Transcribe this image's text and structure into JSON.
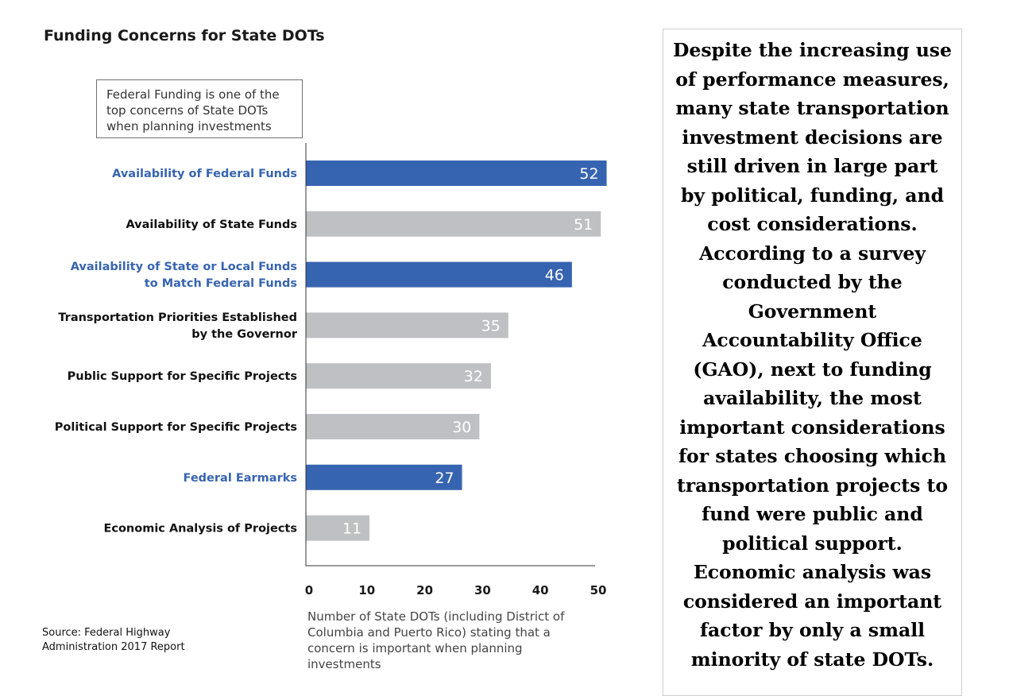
{
  "chart_data": {
    "type": "bar",
    "orientation": "horizontal",
    "title": "Funding Concerns for State DOTs",
    "annotation": "Federal Funding is one of the top concerns of State DOTs when planning investments",
    "categories": [
      "Availability of Federal Funds",
      "Availability of State Funds",
      "Availability of State or Local Funds to Match Federal Funds",
      "Transportation Priorities Established by the Governor",
      "Public Support for Specific Projects",
      "Political Support for Specific Projects",
      "Federal Earmarks",
      "Economic Analysis of Projects"
    ],
    "category_lines": [
      [
        "Availability of Federal Funds"
      ],
      [
        "Availability of State Funds"
      ],
      [
        "Availability of State or Local Funds",
        "to Match Federal Funds"
      ],
      [
        "Transportation Priorities Established",
        "by the Governor"
      ],
      [
        "Public Support for Specific Projects"
      ],
      [
        "Political Support for Specific Projects"
      ],
      [
        "Federal Earmarks"
      ],
      [
        "Economic Analysis of Projects"
      ]
    ],
    "values": [
      52,
      51,
      46,
      35,
      32,
      30,
      27,
      11
    ],
    "highlight": [
      true,
      false,
      true,
      false,
      false,
      false,
      true,
      false
    ],
    "colors": {
      "highlight": "#3764b0",
      "normal": "#bfc0c3",
      "highlight_label": "#3764b0",
      "normal_label": "#111111"
    },
    "xlim": [
      0,
      52
    ],
    "xticks": [
      0,
      10,
      20,
      30,
      40,
      50
    ],
    "xlabel": "Number of State DOTs (including District of Columbia and Puerto Rico) stating that a concern is important when planning investments",
    "grid": false
  },
  "source": "Source: Federal Highway Administration 2017 Report",
  "side_text": "Despite the increasing use of performance measures, many state transportation investment decisions are still driven in large part by political, funding, and cost considerations. According to a survey conducted by the Government Accountability Office (GAO), next to funding availability, the most important considerations for states choosing which transportation projects to fund were public and political support. Economic analysis was considered an important factor by only a small minority of state DOTs."
}
